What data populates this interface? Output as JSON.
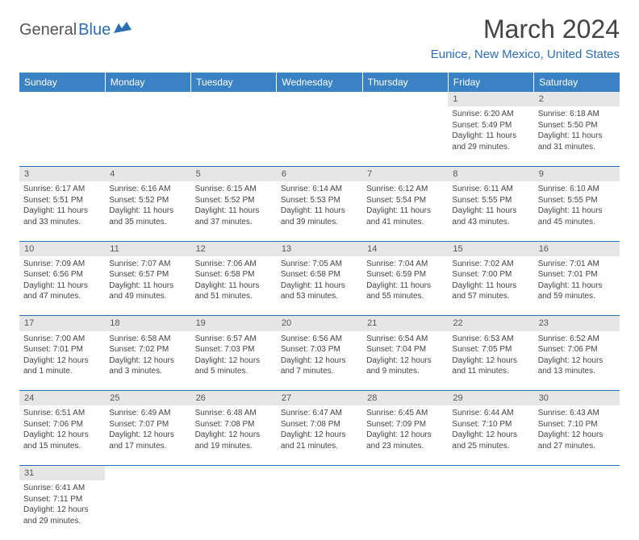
{
  "logo": {
    "text1": "General",
    "text2": "Blue"
  },
  "title": "March 2024",
  "location": "Eunice, New Mexico, United States",
  "colors": {
    "header_bg": "#3a82c4",
    "header_text": "#ffffff",
    "accent": "#2d6fb3",
    "daynum_bg": "#e6e6e6",
    "body_text": "#444444",
    "page_bg": "#ffffff"
  },
  "typography": {
    "title_fontsize": 32,
    "location_fontsize": 15,
    "dayheader_fontsize": 12,
    "cell_fontsize": 10
  },
  "day_headers": [
    "Sunday",
    "Monday",
    "Tuesday",
    "Wednesday",
    "Thursday",
    "Friday",
    "Saturday"
  ],
  "weeks": [
    [
      null,
      null,
      null,
      null,
      null,
      {
        "n": "1",
        "sr": "6:20 AM",
        "ss": "5:49 PM",
        "d1": "11 hours",
        "d2": "and 29 minutes."
      },
      {
        "n": "2",
        "sr": "6:18 AM",
        "ss": "5:50 PM",
        "d1": "11 hours",
        "d2": "and 31 minutes."
      }
    ],
    [
      {
        "n": "3",
        "sr": "6:17 AM",
        "ss": "5:51 PM",
        "d1": "11 hours",
        "d2": "and 33 minutes."
      },
      {
        "n": "4",
        "sr": "6:16 AM",
        "ss": "5:52 PM",
        "d1": "11 hours",
        "d2": "and 35 minutes."
      },
      {
        "n": "5",
        "sr": "6:15 AM",
        "ss": "5:52 PM",
        "d1": "11 hours",
        "d2": "and 37 minutes."
      },
      {
        "n": "6",
        "sr": "6:14 AM",
        "ss": "5:53 PM",
        "d1": "11 hours",
        "d2": "and 39 minutes."
      },
      {
        "n": "7",
        "sr": "6:12 AM",
        "ss": "5:54 PM",
        "d1": "11 hours",
        "d2": "and 41 minutes."
      },
      {
        "n": "8",
        "sr": "6:11 AM",
        "ss": "5:55 PM",
        "d1": "11 hours",
        "d2": "and 43 minutes."
      },
      {
        "n": "9",
        "sr": "6:10 AM",
        "ss": "5:55 PM",
        "d1": "11 hours",
        "d2": "and 45 minutes."
      }
    ],
    [
      {
        "n": "10",
        "sr": "7:09 AM",
        "ss": "6:56 PM",
        "d1": "11 hours",
        "d2": "and 47 minutes."
      },
      {
        "n": "11",
        "sr": "7:07 AM",
        "ss": "6:57 PM",
        "d1": "11 hours",
        "d2": "and 49 minutes."
      },
      {
        "n": "12",
        "sr": "7:06 AM",
        "ss": "6:58 PM",
        "d1": "11 hours",
        "d2": "and 51 minutes."
      },
      {
        "n": "13",
        "sr": "7:05 AM",
        "ss": "6:58 PM",
        "d1": "11 hours",
        "d2": "and 53 minutes."
      },
      {
        "n": "14",
        "sr": "7:04 AM",
        "ss": "6:59 PM",
        "d1": "11 hours",
        "d2": "and 55 minutes."
      },
      {
        "n": "15",
        "sr": "7:02 AM",
        "ss": "7:00 PM",
        "d1": "11 hours",
        "d2": "and 57 minutes."
      },
      {
        "n": "16",
        "sr": "7:01 AM",
        "ss": "7:01 PM",
        "d1": "11 hours",
        "d2": "and 59 minutes."
      }
    ],
    [
      {
        "n": "17",
        "sr": "7:00 AM",
        "ss": "7:01 PM",
        "d1": "12 hours",
        "d2": "and 1 minute."
      },
      {
        "n": "18",
        "sr": "6:58 AM",
        "ss": "7:02 PM",
        "d1": "12 hours",
        "d2": "and 3 minutes."
      },
      {
        "n": "19",
        "sr": "6:57 AM",
        "ss": "7:03 PM",
        "d1": "12 hours",
        "d2": "and 5 minutes."
      },
      {
        "n": "20",
        "sr": "6:56 AM",
        "ss": "7:03 PM",
        "d1": "12 hours",
        "d2": "and 7 minutes."
      },
      {
        "n": "21",
        "sr": "6:54 AM",
        "ss": "7:04 PM",
        "d1": "12 hours",
        "d2": "and 9 minutes."
      },
      {
        "n": "22",
        "sr": "6:53 AM",
        "ss": "7:05 PM",
        "d1": "12 hours",
        "d2": "and 11 minutes."
      },
      {
        "n": "23",
        "sr": "6:52 AM",
        "ss": "7:06 PM",
        "d1": "12 hours",
        "d2": "and 13 minutes."
      }
    ],
    [
      {
        "n": "24",
        "sr": "6:51 AM",
        "ss": "7:06 PM",
        "d1": "12 hours",
        "d2": "and 15 minutes."
      },
      {
        "n": "25",
        "sr": "6:49 AM",
        "ss": "7:07 PM",
        "d1": "12 hours",
        "d2": "and 17 minutes."
      },
      {
        "n": "26",
        "sr": "6:48 AM",
        "ss": "7:08 PM",
        "d1": "12 hours",
        "d2": "and 19 minutes."
      },
      {
        "n": "27",
        "sr": "6:47 AM",
        "ss": "7:08 PM",
        "d1": "12 hours",
        "d2": "and 21 minutes."
      },
      {
        "n": "28",
        "sr": "6:45 AM",
        "ss": "7:09 PM",
        "d1": "12 hours",
        "d2": "and 23 minutes."
      },
      {
        "n": "29",
        "sr": "6:44 AM",
        "ss": "7:10 PM",
        "d1": "12 hours",
        "d2": "and 25 minutes."
      },
      {
        "n": "30",
        "sr": "6:43 AM",
        "ss": "7:10 PM",
        "d1": "12 hours",
        "d2": "and 27 minutes."
      }
    ],
    [
      {
        "n": "31",
        "sr": "6:41 AM",
        "ss": "7:11 PM",
        "d1": "12 hours",
        "d2": "and 29 minutes."
      },
      null,
      null,
      null,
      null,
      null,
      null
    ]
  ],
  "labels": {
    "sunrise_prefix": "Sunrise: ",
    "sunset_prefix": "Sunset: ",
    "daylight_prefix": "Daylight: "
  }
}
